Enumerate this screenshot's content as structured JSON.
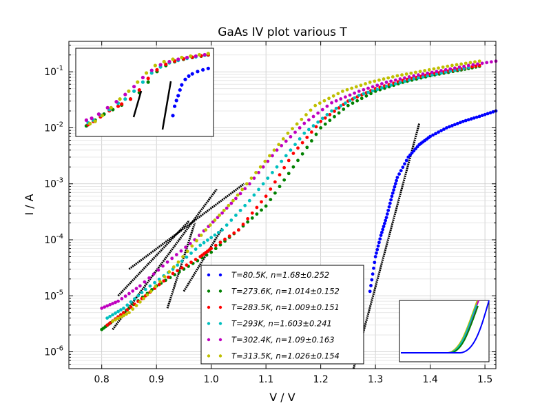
{
  "chart_data": {
    "type": "scatter",
    "title": "GaAs IV plot various T",
    "xlabel": "V / V",
    "ylabel": "I / A",
    "xlim": [
      0.74,
      1.52
    ],
    "ylim": [
      5e-07,
      0.35
    ],
    "y_scale": "log",
    "grid": true,
    "legend_position": "lower-center",
    "x_ticks": [
      "0.8",
      "0.9",
      "1.0",
      "1.1",
      "1.2",
      "1.3",
      "1.4",
      "1.5"
    ],
    "x_tick_values": [
      0.8,
      0.9,
      1.0,
      1.1,
      1.2,
      1.3,
      1.4,
      1.5
    ],
    "y_ticks": [
      "10^-6",
      "10^-5",
      "10^-4",
      "10^-3",
      "10^-2",
      "10^-1"
    ],
    "y_tick_exponents": [
      -6,
      -5,
      -4,
      -3,
      -2,
      -1
    ],
    "series": [
      {
        "name": "T=80.5K, n=1.68±0.252",
        "color": "#0000ff",
        "points": [
          [
            1.29,
            1.2e-05
          ],
          [
            1.3,
            5e-05
          ],
          [
            1.31,
            0.00012
          ],
          [
            1.32,
            0.00025
          ],
          [
            1.33,
            0.0006
          ],
          [
            1.34,
            0.0013
          ],
          [
            1.36,
            0.003
          ],
          [
            1.38,
            0.005
          ],
          [
            1.4,
            0.007
          ],
          [
            1.43,
            0.01
          ],
          [
            1.46,
            0.013
          ],
          [
            1.49,
            0.016
          ],
          [
            1.52,
            0.02
          ]
        ],
        "fit": [
          [
            1.26,
            5e-07
          ],
          [
            1.38,
            0.012
          ]
        ]
      },
      {
        "name": "T=273.6K, n=1.014±0.152",
        "color": "#008000",
        "points": [
          [
            0.8,
            2.5e-06
          ],
          [
            0.82,
            3.5e-06
          ],
          [
            0.85,
            6e-06
          ],
          [
            0.9,
            1.5e-05
          ],
          [
            0.95,
            3e-05
          ],
          [
            1.0,
            6e-05
          ],
          [
            1.05,
            0.00015
          ],
          [
            1.1,
            0.0004
          ],
          [
            1.15,
            0.002
          ],
          [
            1.2,
            0.01
          ],
          [
            1.25,
            0.025
          ],
          [
            1.3,
            0.045
          ],
          [
            1.35,
            0.065
          ],
          [
            1.4,
            0.085
          ],
          [
            1.45,
            0.105
          ],
          [
            1.49,
            0.125
          ]
        ],
        "fit": [
          [
            0.95,
            1.2e-05
          ],
          [
            1.02,
            0.00016
          ]
        ]
      },
      {
        "name": "T=283.5K, n=1.009±0.151",
        "color": "#ff0000",
        "points": [
          [
            0.81,
            3e-06
          ],
          [
            0.84,
            5e-06
          ],
          [
            0.88,
            1e-05
          ],
          [
            0.93,
            2.5e-05
          ],
          [
            0.98,
            5e-05
          ],
          [
            1.0,
            7e-05
          ],
          [
            1.05,
            0.00015
          ],
          [
            1.1,
            0.0006
          ],
          [
            1.15,
            0.0035
          ],
          [
            1.2,
            0.013
          ],
          [
            1.25,
            0.03
          ],
          [
            1.3,
            0.05
          ],
          [
            1.35,
            0.07
          ],
          [
            1.4,
            0.09
          ],
          [
            1.45,
            0.11
          ],
          [
            1.49,
            0.13
          ]
        ],
        "fit": [
          [
            0.92,
            6e-06
          ],
          [
            0.97,
            0.0002
          ]
        ]
      },
      {
        "name": "T=293K, n=1.603±0.241",
        "color": "#00bfbf",
        "points": [
          [
            0.81,
            4e-06
          ],
          [
            0.84,
            6e-06
          ],
          [
            0.88,
            1.3e-05
          ],
          [
            0.93,
            3e-05
          ],
          [
            0.98,
            8e-05
          ],
          [
            1.02,
            0.00015
          ],
          [
            1.07,
            0.0005
          ],
          [
            1.12,
            0.002
          ],
          [
            1.17,
            0.008
          ],
          [
            1.22,
            0.02
          ],
          [
            1.27,
            0.038
          ],
          [
            1.32,
            0.055
          ],
          [
            1.37,
            0.075
          ],
          [
            1.42,
            0.095
          ],
          [
            1.47,
            0.12
          ]
        ],
        "fit": [
          [
            0.83,
            1e-05
          ],
          [
            0.96,
            0.00022
          ]
        ]
      },
      {
        "name": "T=302.4K, n=1.09±0.163",
        "color": "#bf00bf",
        "points": [
          [
            0.8,
            6e-06
          ],
          [
            0.83,
            8e-06
          ],
          [
            0.87,
            1.5e-05
          ],
          [
            0.92,
            4e-05
          ],
          [
            0.97,
            0.0001
          ],
          [
            1.02,
            0.0003
          ],
          [
            1.07,
            0.001
          ],
          [
            1.12,
            0.004
          ],
          [
            1.17,
            0.012
          ],
          [
            1.22,
            0.028
          ],
          [
            1.27,
            0.045
          ],
          [
            1.32,
            0.065
          ],
          [
            1.37,
            0.085
          ],
          [
            1.42,
            0.105
          ],
          [
            1.47,
            0.13
          ],
          [
            1.52,
            0.155
          ]
        ],
        "fit": [
          [
            0.82,
            2.5e-06
          ],
          [
            1.01,
            0.0008
          ]
        ]
      },
      {
        "name": "T=313.5K, n=1.026±0.154",
        "color": "#bfbf00",
        "points": [
          [
            0.82,
            3.5e-06
          ],
          [
            0.85,
            5e-06
          ],
          [
            0.89,
            1.2e-05
          ],
          [
            0.94,
            4e-05
          ],
          [
            0.99,
            0.00015
          ],
          [
            1.04,
            0.0005
          ],
          [
            1.09,
            0.002
          ],
          [
            1.14,
            0.008
          ],
          [
            1.19,
            0.025
          ],
          [
            1.24,
            0.045
          ],
          [
            1.29,
            0.065
          ],
          [
            1.34,
            0.085
          ],
          [
            1.39,
            0.105
          ],
          [
            1.44,
            0.13
          ],
          [
            1.49,
            0.155
          ]
        ],
        "fit": [
          [
            0.85,
            3e-05
          ],
          [
            1.06,
            0.001
          ]
        ]
      }
    ]
  }
}
